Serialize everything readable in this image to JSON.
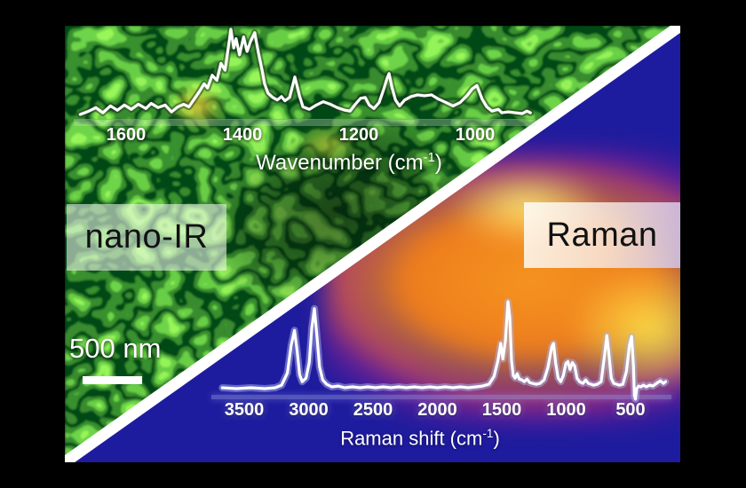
{
  "figure": {
    "technique_left": "nano-IR",
    "technique_right": "Raman",
    "scale_bar_label": "500 nm"
  },
  "colors": {
    "canvas": "#000000",
    "afm_green_bright": "#2ed32e",
    "afm_green_dark": "#041c04",
    "afm_yellow_spot": "#e8d23c",
    "raman_bg_navy": "#1e1c9e",
    "blob_orange": "#ee7d1d",
    "blob_yellow": "#ffe24a",
    "blob_purple": "#7c2096",
    "divider": "#ffffff",
    "trace": "#ffffff",
    "tick_text": "#ffffff",
    "label_text": "#111111"
  },
  "chart_data": [
    {
      "type": "line",
      "name": "nano-IR spectrum",
      "xlabel_prefix": "Wavenumber (cm",
      "xlabel_sup": "-1",
      "xlabel_suffix": ")",
      "x_ticks": [
        1600,
        1400,
        1200,
        1000
      ],
      "x_range_left_to_right": [
        1680,
        905
      ],
      "x_axis_direction": "decreasing",
      "grid": false,
      "legend": null,
      "line_color": "#ffffff",
      "peaks_cm1": [
        1465,
        1420,
        1380,
        1310,
        1148,
        997
      ],
      "trace_w_i": [
        [
          1679,
          0.0
        ],
        [
          1664,
          0.04
        ],
        [
          1652,
          0.08
        ],
        [
          1640,
          0.02
        ],
        [
          1627,
          0.1
        ],
        [
          1615,
          0.05
        ],
        [
          1603,
          0.11
        ],
        [
          1591,
          0.06
        ],
        [
          1579,
          0.12
        ],
        [
          1566,
          0.07
        ],
        [
          1557,
          0.13
        ],
        [
          1545,
          0.08
        ],
        [
          1533,
          0.11
        ],
        [
          1522,
          0.03
        ],
        [
          1511,
          0.09
        ],
        [
          1501,
          0.12
        ],
        [
          1492,
          0.09
        ],
        [
          1482,
          0.19
        ],
        [
          1473,
          0.28
        ],
        [
          1466,
          0.36
        ],
        [
          1460,
          0.31
        ],
        [
          1452,
          0.46
        ],
        [
          1444,
          0.4
        ],
        [
          1437,
          0.6
        ],
        [
          1430,
          0.52
        ],
        [
          1424,
          0.8
        ],
        [
          1420,
          1.0
        ],
        [
          1415,
          0.78
        ],
        [
          1411,
          0.89
        ],
        [
          1405,
          0.7
        ],
        [
          1398,
          0.91
        ],
        [
          1392,
          0.74
        ],
        [
          1386,
          0.86
        ],
        [
          1379,
          0.96
        ],
        [
          1373,
          0.74
        ],
        [
          1366,
          0.51
        ],
        [
          1362,
          0.36
        ],
        [
          1356,
          0.25
        ],
        [
          1348,
          0.2
        ],
        [
          1340,
          0.17
        ],
        [
          1333,
          0.21
        ],
        [
          1327,
          0.16
        ],
        [
          1319,
          0.2
        ],
        [
          1310,
          0.44
        ],
        [
          1302,
          0.22
        ],
        [
          1296,
          0.09
        ],
        [
          1285,
          0.06
        ],
        [
          1273,
          0.11
        ],
        [
          1261,
          0.15
        ],
        [
          1249,
          0.12
        ],
        [
          1237,
          0.08
        ],
        [
          1224,
          0.05
        ],
        [
          1215,
          0.04
        ],
        [
          1206,
          0.12
        ],
        [
          1197,
          0.19
        ],
        [
          1189,
          0.2
        ],
        [
          1182,
          0.11
        ],
        [
          1174,
          0.07
        ],
        [
          1165,
          0.14
        ],
        [
          1157,
          0.3
        ],
        [
          1151,
          0.43
        ],
        [
          1148,
          0.48
        ],
        [
          1143,
          0.32
        ],
        [
          1137,
          0.17
        ],
        [
          1130,
          0.1
        ],
        [
          1121,
          0.17
        ],
        [
          1110,
          0.21
        ],
        [
          1099,
          0.23
        ],
        [
          1087,
          0.22
        ],
        [
          1075,
          0.23
        ],
        [
          1063,
          0.18
        ],
        [
          1050,
          0.14
        ],
        [
          1038,
          0.1
        ],
        [
          1026,
          0.14
        ],
        [
          1014,
          0.22
        ],
        [
          1005,
          0.3
        ],
        [
          997,
          0.34
        ],
        [
          988,
          0.18
        ],
        [
          980,
          0.09
        ],
        [
          971,
          0.04
        ],
        [
          960,
          0.06
        ],
        [
          954,
          0.02
        ],
        [
          943,
          0.03
        ],
        [
          931,
          0.02
        ],
        [
          919,
          0.01
        ],
        [
          911,
          0.04
        ],
        [
          905,
          0.02
        ]
      ]
    },
    {
      "type": "line",
      "name": "Raman spectrum",
      "xlabel_prefix": "Raman shift (cm",
      "xlabel_sup": "-1",
      "xlabel_suffix": ")",
      "x_ticks": [
        3500,
        3000,
        2500,
        2000,
        1500,
        1000,
        500
      ],
      "x_range_left_to_right": [
        3670,
        228
      ],
      "x_axis_direction": "decreasing",
      "grid": false,
      "legend": null,
      "line_color": "#ffffff",
      "peaks_cm1": [
        3110,
        2955,
        1508,
        1452,
        1098,
        986,
        952,
        684,
        492
      ],
      "trace_w_i": [
        [
          3670,
          0.01
        ],
        [
          3560,
          0.0
        ],
        [
          3450,
          0.01
        ],
        [
          3340,
          0.0
        ],
        [
          3260,
          0.01
        ],
        [
          3210,
          0.04
        ],
        [
          3165,
          0.18
        ],
        [
          3135,
          0.5
        ],
        [
          3110,
          0.67
        ],
        [
          3090,
          0.45
        ],
        [
          3070,
          0.16
        ],
        [
          3050,
          0.08
        ],
        [
          3020,
          0.12
        ],
        [
          2995,
          0.3
        ],
        [
          2975,
          0.7
        ],
        [
          2955,
          0.92
        ],
        [
          2935,
          0.6
        ],
        [
          2915,
          0.25
        ],
        [
          2890,
          0.1
        ],
        [
          2860,
          0.05
        ],
        [
          2820,
          0.02
        ],
        [
          2770,
          0.03
        ],
        [
          2720,
          0.01
        ],
        [
          2660,
          0.02
        ],
        [
          2600,
          0.01
        ],
        [
          2540,
          0.02
        ],
        [
          2480,
          0.01
        ],
        [
          2420,
          0.02
        ],
        [
          2360,
          0.01
        ],
        [
          2300,
          0.02
        ],
        [
          2240,
          0.01
        ],
        [
          2180,
          0.02
        ],
        [
          2120,
          0.01
        ],
        [
          2060,
          0.02
        ],
        [
          2000,
          0.01
        ],
        [
          1940,
          0.02
        ],
        [
          1880,
          0.01
        ],
        [
          1820,
          0.02
        ],
        [
          1760,
          0.01
        ],
        [
          1700,
          0.02
        ],
        [
          1650,
          0.03
        ],
        [
          1600,
          0.05
        ],
        [
          1560,
          0.14
        ],
        [
          1530,
          0.32
        ],
        [
          1508,
          0.52
        ],
        [
          1492,
          0.34
        ],
        [
          1472,
          0.55
        ],
        [
          1452,
          1.0
        ],
        [
          1438,
          0.82
        ],
        [
          1424,
          0.32
        ],
        [
          1410,
          0.15
        ],
        [
          1396,
          0.12
        ],
        [
          1380,
          0.17
        ],
        [
          1364,
          0.11
        ],
        [
          1344,
          0.1
        ],
        [
          1324,
          0.08
        ],
        [
          1304,
          0.11
        ],
        [
          1284,
          0.07
        ],
        [
          1262,
          0.06
        ],
        [
          1232,
          0.05
        ],
        [
          1202,
          0.06
        ],
        [
          1172,
          0.1
        ],
        [
          1142,
          0.24
        ],
        [
          1112,
          0.48
        ],
        [
          1098,
          0.52
        ],
        [
          1082,
          0.3
        ],
        [
          1062,
          0.12
        ],
        [
          1042,
          0.08
        ],
        [
          1022,
          0.15
        ],
        [
          1002,
          0.29
        ],
        [
          986,
          0.31
        ],
        [
          970,
          0.22
        ],
        [
          952,
          0.3
        ],
        [
          934,
          0.26
        ],
        [
          916,
          0.12
        ],
        [
          896,
          0.08
        ],
        [
          870,
          0.06
        ],
        [
          848,
          0.1
        ],
        [
          828,
          0.06
        ],
        [
          806,
          0.05
        ],
        [
          786,
          0.04
        ],
        [
          758,
          0.05
        ],
        [
          728,
          0.08
        ],
        [
          702,
          0.38
        ],
        [
          684,
          0.61
        ],
        [
          668,
          0.4
        ],
        [
          650,
          0.12
        ],
        [
          630,
          0.06
        ],
        [
          608,
          0.05
        ],
        [
          586,
          0.04
        ],
        [
          560,
          0.05
        ],
        [
          532,
          0.2
        ],
        [
          508,
          0.5
        ],
        [
          492,
          0.6
        ],
        [
          478,
          0.28
        ],
        [
          470,
          -0.08
        ],
        [
          462,
          -0.12
        ],
        [
          452,
          0.0
        ],
        [
          438,
          0.03
        ],
        [
          420,
          0.02
        ],
        [
          400,
          0.04
        ],
        [
          378,
          0.02
        ],
        [
          352,
          0.04
        ],
        [
          326,
          0.03
        ],
        [
          298,
          0.06
        ],
        [
          268,
          0.09
        ],
        [
          244,
          0.06
        ],
        [
          228,
          0.08
        ]
      ]
    }
  ]
}
